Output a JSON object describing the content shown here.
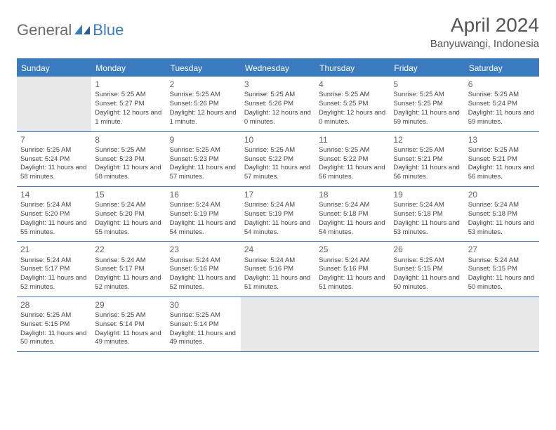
{
  "logo": {
    "general": "General",
    "blue": "Blue",
    "icon_fill": "#3a7bbf"
  },
  "title": "April 2024",
  "location": "Banyuwangi, Indonesia",
  "colors": {
    "header_bg": "#3a7bbf",
    "header_text": "#ffffff",
    "body_text": "#444444",
    "empty_cell": "#e8e8e8",
    "page_bg": "#ffffff"
  },
  "daysOfWeek": [
    "Sunday",
    "Monday",
    "Tuesday",
    "Wednesday",
    "Thursday",
    "Friday",
    "Saturday"
  ],
  "weeks": [
    [
      {
        "empty": true
      },
      {
        "n": "1",
        "sr": "5:25 AM",
        "ss": "5:27 PM",
        "dl": "12 hours and 1 minute."
      },
      {
        "n": "2",
        "sr": "5:25 AM",
        "ss": "5:26 PM",
        "dl": "12 hours and 1 minute."
      },
      {
        "n": "3",
        "sr": "5:25 AM",
        "ss": "5:26 PM",
        "dl": "12 hours and 0 minutes."
      },
      {
        "n": "4",
        "sr": "5:25 AM",
        "ss": "5:25 PM",
        "dl": "12 hours and 0 minutes."
      },
      {
        "n": "5",
        "sr": "5:25 AM",
        "ss": "5:25 PM",
        "dl": "11 hours and 59 minutes."
      },
      {
        "n": "6",
        "sr": "5:25 AM",
        "ss": "5:24 PM",
        "dl": "11 hours and 59 minutes."
      }
    ],
    [
      {
        "n": "7",
        "sr": "5:25 AM",
        "ss": "5:24 PM",
        "dl": "11 hours and 58 minutes."
      },
      {
        "n": "8",
        "sr": "5:25 AM",
        "ss": "5:23 PM",
        "dl": "11 hours and 58 minutes."
      },
      {
        "n": "9",
        "sr": "5:25 AM",
        "ss": "5:23 PM",
        "dl": "11 hours and 57 minutes."
      },
      {
        "n": "10",
        "sr": "5:25 AM",
        "ss": "5:22 PM",
        "dl": "11 hours and 57 minutes."
      },
      {
        "n": "11",
        "sr": "5:25 AM",
        "ss": "5:22 PM",
        "dl": "11 hours and 56 minutes."
      },
      {
        "n": "12",
        "sr": "5:25 AM",
        "ss": "5:21 PM",
        "dl": "11 hours and 56 minutes."
      },
      {
        "n": "13",
        "sr": "5:25 AM",
        "ss": "5:21 PM",
        "dl": "11 hours and 56 minutes."
      }
    ],
    [
      {
        "n": "14",
        "sr": "5:24 AM",
        "ss": "5:20 PM",
        "dl": "11 hours and 55 minutes."
      },
      {
        "n": "15",
        "sr": "5:24 AM",
        "ss": "5:20 PM",
        "dl": "11 hours and 55 minutes."
      },
      {
        "n": "16",
        "sr": "5:24 AM",
        "ss": "5:19 PM",
        "dl": "11 hours and 54 minutes."
      },
      {
        "n": "17",
        "sr": "5:24 AM",
        "ss": "5:19 PM",
        "dl": "11 hours and 54 minutes."
      },
      {
        "n": "18",
        "sr": "5:24 AM",
        "ss": "5:18 PM",
        "dl": "11 hours and 54 minutes."
      },
      {
        "n": "19",
        "sr": "5:24 AM",
        "ss": "5:18 PM",
        "dl": "11 hours and 53 minutes."
      },
      {
        "n": "20",
        "sr": "5:24 AM",
        "ss": "5:18 PM",
        "dl": "11 hours and 53 minutes."
      }
    ],
    [
      {
        "n": "21",
        "sr": "5:24 AM",
        "ss": "5:17 PM",
        "dl": "11 hours and 52 minutes."
      },
      {
        "n": "22",
        "sr": "5:24 AM",
        "ss": "5:17 PM",
        "dl": "11 hours and 52 minutes."
      },
      {
        "n": "23",
        "sr": "5:24 AM",
        "ss": "5:16 PM",
        "dl": "11 hours and 52 minutes."
      },
      {
        "n": "24",
        "sr": "5:24 AM",
        "ss": "5:16 PM",
        "dl": "11 hours and 51 minutes."
      },
      {
        "n": "25",
        "sr": "5:24 AM",
        "ss": "5:16 PM",
        "dl": "11 hours and 51 minutes."
      },
      {
        "n": "26",
        "sr": "5:25 AM",
        "ss": "5:15 PM",
        "dl": "11 hours and 50 minutes."
      },
      {
        "n": "27",
        "sr": "5:24 AM",
        "ss": "5:15 PM",
        "dl": "11 hours and 50 minutes."
      }
    ],
    [
      {
        "n": "28",
        "sr": "5:25 AM",
        "ss": "5:15 PM",
        "dl": "11 hours and 50 minutes."
      },
      {
        "n": "29",
        "sr": "5:25 AM",
        "ss": "5:14 PM",
        "dl": "11 hours and 49 minutes."
      },
      {
        "n": "30",
        "sr": "5:25 AM",
        "ss": "5:14 PM",
        "dl": "11 hours and 49 minutes."
      },
      {
        "empty": true
      },
      {
        "empty": true
      },
      {
        "empty": true
      },
      {
        "empty": true
      }
    ]
  ],
  "labels": {
    "sunrise": "Sunrise:",
    "sunset": "Sunset:",
    "daylight": "Daylight:"
  }
}
